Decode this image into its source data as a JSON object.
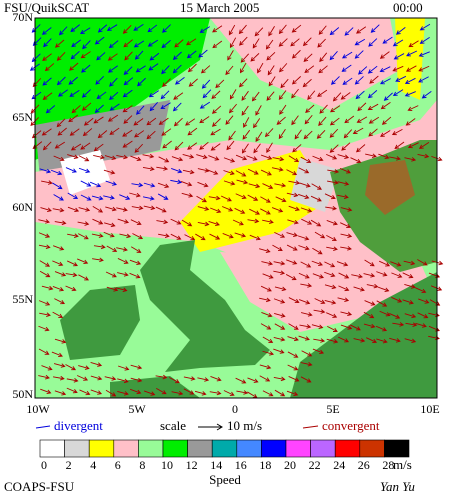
{
  "header": {
    "source": "FSU/QuikSCAT",
    "date": "15 March 2005",
    "time": "00:00"
  },
  "map": {
    "lat_labels": [
      "70N",
      "65N",
      "60N",
      "55N",
      "50N"
    ],
    "lon_labels": [
      "10W",
      "5W",
      "0",
      "5E",
      "10E"
    ]
  },
  "legend": {
    "divergent": "divergent",
    "scale": "scale",
    "scale_value": "10 m/s",
    "convergent": "convergent",
    "divergent_color": "#0000dd",
    "convergent_color": "#aa0000"
  },
  "colorbar": {
    "labels": [
      "0",
      "2",
      "4",
      "6",
      "8",
      "10",
      "12",
      "14",
      "16",
      "18",
      "20",
      "22",
      "24",
      "26",
      "28"
    ],
    "colors": [
      "#ffffff",
      "#d8d8d8",
      "#ffff00",
      "#ffc0c8",
      "#98fb98",
      "#00ee00",
      "#999999",
      "#00aaaa",
      "#4488ff",
      "#0000ff",
      "#ff44ff",
      "#bb66ff",
      "#ff0000",
      "#cc3300",
      "#000000"
    ],
    "unit": "m/s",
    "title": "Speed"
  },
  "footer": {
    "left": "COAPS-FSU",
    "right": "Yan Yu"
  }
}
